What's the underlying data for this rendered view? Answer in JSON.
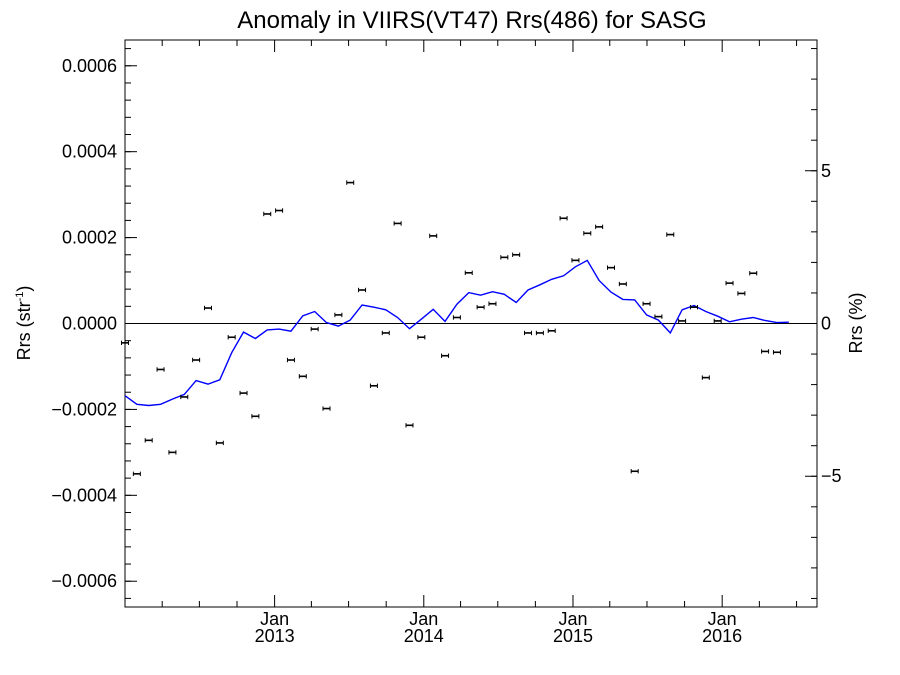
{
  "chart_data": {
    "type": "scatter",
    "title": "Anomaly in VIIRS(VT47) Rrs(486) for SASG",
    "ylabel": "Rrs (str",
    "ylabel_sup": "-1",
    "ylabel_close": ")",
    "y2label": "Rrs (%)",
    "xlim": [
      "2012-01-01",
      "2016-08-20"
    ],
    "ylim": [
      -0.00066,
      0.00066
    ],
    "y2lim": [
      -9.28,
      9.28
    ],
    "grid": false,
    "zero_line": true,
    "x_ticks": [
      {
        "date": "2013-01-01",
        "label1": "Jan",
        "label2": "2013"
      },
      {
        "date": "2014-01-01",
        "label1": "Jan",
        "label2": "2014"
      },
      {
        "date": "2015-01-01",
        "label1": "Jan",
        "label2": "2015"
      },
      {
        "date": "2016-01-01",
        "label1": "Jan",
        "label2": "2016"
      }
    ],
    "y_ticks": [
      {
        "value": 0.0006,
        "label": "0.0006"
      },
      {
        "value": 0.0004,
        "label": "0.0004"
      },
      {
        "value": 0.0002,
        "label": "0.0002"
      },
      {
        "value": 0.0,
        "label": "0.0000"
      },
      {
        "value": -0.0002,
        "label": "−0.0002"
      },
      {
        "value": -0.0004,
        "label": "−0.0004"
      },
      {
        "value": -0.0006,
        "label": "−0.0006"
      }
    ],
    "y2_ticks": [
      {
        "value": 5,
        "label": "5"
      },
      {
        "value": 0,
        "label": "0"
      },
      {
        "value": -5,
        "label": "−5"
      }
    ],
    "colors": {
      "line": "#0000ff",
      "points": "#000000",
      "axes": "#000000"
    },
    "series": [
      {
        "points": [
          {
            "x": "2012-01-01",
            "y": -4.5e-05
          },
          {
            "x": "2012-01-30",
            "y": -0.00035
          },
          {
            "x": "2012-02-28",
            "y": -0.000272
          },
          {
            "x": "2012-03-28",
            "y": -0.000107
          },
          {
            "x": "2012-04-26",
            "y": -0.0003
          },
          {
            "x": "2012-05-25",
            "y": -0.000171
          },
          {
            "x": "2012-06-23",
            "y": -8.5e-05
          },
          {
            "x": "2012-07-22",
            "y": 3.6e-05
          },
          {
            "x": "2012-08-20",
            "y": -0.000278
          },
          {
            "x": "2012-09-18",
            "y": -3.2e-05
          },
          {
            "x": "2012-10-17",
            "y": -0.000162
          },
          {
            "x": "2012-11-15",
            "y": -0.000216
          },
          {
            "x": "2012-12-14",
            "y": 0.000255
          },
          {
            "x": "2013-01-12",
            "y": 0.000263
          },
          {
            "x": "2013-02-10",
            "y": -8.5e-05
          },
          {
            "x": "2013-03-11",
            "y": -0.000123
          },
          {
            "x": "2013-04-09",
            "y": -1.3e-05
          },
          {
            "x": "2013-05-08",
            "y": -0.000198
          },
          {
            "x": "2013-06-06",
            "y": 2e-05
          },
          {
            "x": "2013-07-05",
            "y": 0.000328
          },
          {
            "x": "2013-08-03",
            "y": 7.8e-05
          },
          {
            "x": "2013-09-01",
            "y": -0.000145
          },
          {
            "x": "2013-09-30",
            "y": -2.2e-05
          },
          {
            "x": "2013-10-29",
            "y": 0.000233
          },
          {
            "x": "2013-11-27",
            "y": -0.000237
          },
          {
            "x": "2013-12-26",
            "y": -3.2e-05
          },
          {
            "x": "2014-01-24",
            "y": 0.000204
          },
          {
            "x": "2014-02-22",
            "y": -7.5e-05
          },
          {
            "x": "2014-03-23",
            "y": 1.4e-05
          },
          {
            "x": "2014-04-21",
            "y": 0.000118
          },
          {
            "x": "2014-05-20",
            "y": 3.8e-05
          },
          {
            "x": "2014-06-18",
            "y": 4.6e-05
          },
          {
            "x": "2014-07-17",
            "y": 0.000154
          },
          {
            "x": "2014-08-15",
            "y": 0.00016
          },
          {
            "x": "2014-09-13",
            "y": -2.2e-05
          },
          {
            "x": "2014-10-12",
            "y": -2.2e-05
          },
          {
            "x": "2014-11-10",
            "y": -1.7e-05
          },
          {
            "x": "2014-12-09",
            "y": 0.000245
          },
          {
            "x": "2015-01-07",
            "y": 0.000147
          },
          {
            "x": "2015-02-05",
            "y": 0.00021
          },
          {
            "x": "2015-03-06",
            "y": 0.000225
          },
          {
            "x": "2015-04-04",
            "y": 0.00013
          },
          {
            "x": "2015-05-03",
            "y": 9.2e-05
          },
          {
            "x": "2015-06-01",
            "y": -0.000344
          },
          {
            "x": "2015-06-30",
            "y": 4.6e-05
          },
          {
            "x": "2015-07-29",
            "y": 1.6e-05
          },
          {
            "x": "2015-08-27",
            "y": 0.000207
          },
          {
            "x": "2015-09-25",
            "y": 6e-06
          },
          {
            "x": "2015-10-24",
            "y": 3.8e-05
          },
          {
            "x": "2015-11-22",
            "y": -0.000126
          },
          {
            "x": "2015-12-21",
            "y": 6e-06
          },
          {
            "x": "2016-01-19",
            "y": 9.4e-05
          },
          {
            "x": "2016-02-17",
            "y": 7e-05
          },
          {
            "x": "2016-03-17",
            "y": 0.000117
          },
          {
            "x": "2016-04-15",
            "y": -6.5e-05
          },
          {
            "x": "2016-05-14",
            "y": -6.7e-05
          }
        ]
      },
      {
        "line": [
          {
            "x": "2012-01-01",
            "y": -0.000168
          },
          {
            "x": "2012-01-30",
            "y": -0.000188
          },
          {
            "x": "2012-02-28",
            "y": -0.000191
          },
          {
            "x": "2012-03-28",
            "y": -0.000188
          },
          {
            "x": "2012-04-26",
            "y": -0.000176
          },
          {
            "x": "2012-05-25",
            "y": -0.000165
          },
          {
            "x": "2012-06-23",
            "y": -0.000133
          },
          {
            "x": "2012-07-22",
            "y": -0.000141
          },
          {
            "x": "2012-08-20",
            "y": -0.000131
          },
          {
            "x": "2012-09-18",
            "y": -6.8e-05
          },
          {
            "x": "2012-10-17",
            "y": -2e-05
          },
          {
            "x": "2012-11-15",
            "y": -3.5e-05
          },
          {
            "x": "2012-12-14",
            "y": -1.5e-05
          },
          {
            "x": "2013-01-12",
            "y": -1.3e-05
          },
          {
            "x": "2013-02-10",
            "y": -1.8e-05
          },
          {
            "x": "2013-03-11",
            "y": 1.8e-05
          },
          {
            "x": "2013-04-09",
            "y": 2.8e-05
          },
          {
            "x": "2013-05-08",
            "y": 2e-06
          },
          {
            "x": "2013-06-06",
            "y": -6e-06
          },
          {
            "x": "2013-07-05",
            "y": 8e-06
          },
          {
            "x": "2013-08-03",
            "y": 4.3e-05
          },
          {
            "x": "2013-09-01",
            "y": 3.8e-05
          },
          {
            "x": "2013-09-30",
            "y": 3.2e-05
          },
          {
            "x": "2013-10-29",
            "y": 1.4e-05
          },
          {
            "x": "2013-11-27",
            "y": -1.2e-05
          },
          {
            "x": "2013-12-26",
            "y": 1e-05
          },
          {
            "x": "2014-01-24",
            "y": 3.3e-05
          },
          {
            "x": "2014-02-22",
            "y": 5e-06
          },
          {
            "x": "2014-03-23",
            "y": 4.5e-05
          },
          {
            "x": "2014-04-21",
            "y": 7.2e-05
          },
          {
            "x": "2014-05-20",
            "y": 6.6e-05
          },
          {
            "x": "2014-06-18",
            "y": 7.4e-05
          },
          {
            "x": "2014-07-17",
            "y": 6.8e-05
          },
          {
            "x": "2014-08-15",
            "y": 4.9e-05
          },
          {
            "x": "2014-09-13",
            "y": 7.8e-05
          },
          {
            "x": "2014-10-12",
            "y": 9e-05
          },
          {
            "x": "2014-11-10",
            "y": 0.000103
          },
          {
            "x": "2014-12-09",
            "y": 0.000111
          },
          {
            "x": "2015-01-07",
            "y": 0.000132
          },
          {
            "x": "2015-02-05",
            "y": 0.000147
          },
          {
            "x": "2015-03-06",
            "y": 0.0001
          },
          {
            "x": "2015-04-04",
            "y": 7.3e-05
          },
          {
            "x": "2015-05-03",
            "y": 5.6e-05
          },
          {
            "x": "2015-06-01",
            "y": 5.5e-05
          },
          {
            "x": "2015-06-30",
            "y": 2e-05
          },
          {
            "x": "2015-07-29",
            "y": 8e-06
          },
          {
            "x": "2015-08-27",
            "y": -2.2e-05
          },
          {
            "x": "2015-09-25",
            "y": 3.2e-05
          },
          {
            "x": "2015-10-24",
            "y": 4.2e-05
          },
          {
            "x": "2015-11-22",
            "y": 2.8e-05
          },
          {
            "x": "2015-12-21",
            "y": 1.7e-05
          },
          {
            "x": "2016-01-19",
            "y": 4e-06
          },
          {
            "x": "2016-02-17",
            "y": 1e-05
          },
          {
            "x": "2016-03-17",
            "y": 1.4e-05
          },
          {
            "x": "2016-04-15",
            "y": 7e-06
          },
          {
            "x": "2016-05-14",
            "y": 2e-06
          },
          {
            "x": "2016-06-12",
            "y": 3e-06
          }
        ]
      }
    ]
  }
}
